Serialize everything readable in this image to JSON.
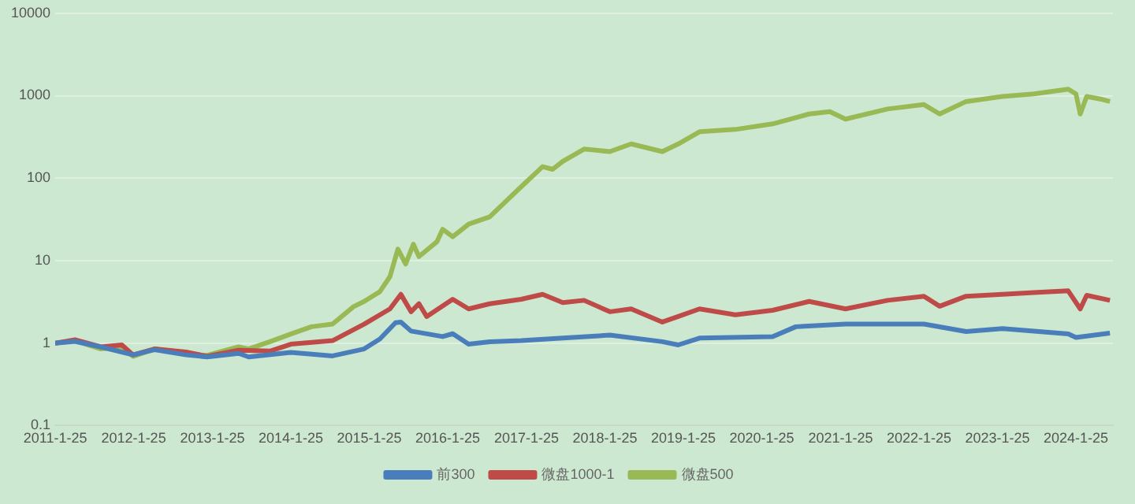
{
  "chart_data": {
    "type": "line",
    "log": "y",
    "grid": "y",
    "legend": "bottom",
    "xlim": [
      "2011-01-25",
      "2024-07-15"
    ],
    "xticks": [
      {
        "value": "2011-01-25",
        "label": "2011-1-25"
      },
      {
        "value": "2012-01-25",
        "label": "2012-1-25"
      },
      {
        "value": "2013-01-25",
        "label": "2013-1-25"
      },
      {
        "value": "2014-01-25",
        "label": "2014-1-25"
      },
      {
        "value": "2015-01-25",
        "label": "2015-1-25"
      },
      {
        "value": "2016-01-25",
        "label": "2016-1-25"
      },
      {
        "value": "2017-01-25",
        "label": "2017-1-25"
      },
      {
        "value": "2018-01-25",
        "label": "2018-1-25"
      },
      {
        "value": "2019-01-25",
        "label": "2019-1-25"
      },
      {
        "value": "2020-01-25",
        "label": "2020-1-25"
      },
      {
        "value": "2021-01-25",
        "label": "2021-1-25"
      },
      {
        "value": "2022-01-25",
        "label": "2022-1-25"
      },
      {
        "value": "2023-01-25",
        "label": "2023-1-25"
      },
      {
        "value": "2024-01-25",
        "label": "2024-1-25"
      }
    ],
    "ylim": [
      0.1,
      10000
    ],
    "yticks": [
      0.1,
      1,
      10,
      100,
      1000,
      10000
    ],
    "series": [
      {
        "name": "前300",
        "color": "#4a7ebb",
        "x": [
          "2011-01-25",
          "2011-04-27",
          "2011-08-25",
          "2012-01-22",
          "2012-05-01",
          "2012-09-24",
          "2013-01-01",
          "2013-05-27",
          "2013-07-13",
          "2014-01-25",
          "2014-08-07",
          "2015-01-01",
          "2015-03-15",
          "2015-05-27",
          "2015-06-21",
          "2015-08-07",
          "2016-01-01",
          "2016-02-17",
          "2016-05-01",
          "2016-08-07",
          "2017-01-01",
          "2017-07-13",
          "2018-02-17",
          "2018-10-19",
          "2019-01-01",
          "2019-04-10",
          "2020-03-15",
          "2020-07-01",
          "2021-02-17",
          "2022-02-17",
          "2022-09-01",
          "2023-02-17",
          "2023-12-20",
          "2024-01-25",
          "2024-07-01"
        ],
        "values": [
          1.0,
          1.05,
          0.9,
          0.72,
          0.83,
          0.72,
          0.68,
          0.75,
          0.68,
          0.77,
          0.7,
          0.85,
          1.12,
          1.77,
          1.8,
          1.4,
          1.2,
          1.3,
          0.97,
          1.04,
          1.07,
          1.15,
          1.25,
          1.04,
          0.95,
          1.15,
          1.2,
          1.58,
          1.7,
          1.7,
          1.38,
          1.5,
          1.29,
          1.17,
          1.32
        ]
      },
      {
        "name": "微盘1000-1",
        "color": "#be4b48",
        "x": [
          "2011-01-25",
          "2011-04-27",
          "2011-08-25",
          "2011-12-01",
          "2012-01-22",
          "2012-05-01",
          "2012-09-24",
          "2013-01-01",
          "2013-05-27",
          "2013-10-20",
          "2014-01-25",
          "2014-08-07",
          "2015-01-01",
          "2015-05-01",
          "2015-06-21",
          "2015-08-07",
          "2015-09-13",
          "2015-10-19",
          "2016-02-17",
          "2016-05-01",
          "2016-08-07",
          "2017-01-01",
          "2017-04-10",
          "2017-07-13",
          "2017-10-20",
          "2018-02-17",
          "2018-05-27",
          "2018-10-19",
          "2019-01-01",
          "2019-04-10",
          "2019-09-24",
          "2020-03-15",
          "2020-09-01",
          "2021-02-17",
          "2021-09-01",
          "2022-02-17",
          "2022-05-01",
          "2022-09-01",
          "2023-02-17",
          "2023-07-13",
          "2023-12-20",
          "2024-02-14",
          "2024-03-15",
          "2024-07-01"
        ],
        "values": [
          1.0,
          1.1,
          0.9,
          0.95,
          0.72,
          0.85,
          0.78,
          0.69,
          0.82,
          0.8,
          0.97,
          1.07,
          1.7,
          2.6,
          3.9,
          2.4,
          3.0,
          2.1,
          3.4,
          2.6,
          3.0,
          3.4,
          3.9,
          3.1,
          3.3,
          2.4,
          2.6,
          1.8,
          2.1,
          2.6,
          2.2,
          2.5,
          3.2,
          2.6,
          3.3,
          3.7,
          2.8,
          3.7,
          3.9,
          4.1,
          4.3,
          2.6,
          3.8,
          3.3
        ]
      },
      {
        "name": "微盘500",
        "color": "#98b954",
        "x": [
          "2011-01-25",
          "2011-04-27",
          "2011-08-25",
          "2011-12-01",
          "2012-01-22",
          "2012-05-01",
          "2012-09-24",
          "2013-01-01",
          "2013-05-27",
          "2013-07-13",
          "2013-10-20",
          "2014-01-25",
          "2014-05-01",
          "2014-08-07",
          "2014-11-13",
          "2015-01-01",
          "2015-03-15",
          "2015-05-01",
          "2015-06-07",
          "2015-07-13",
          "2015-08-18",
          "2015-09-13",
          "2015-12-06",
          "2016-01-01",
          "2016-02-17",
          "2016-05-01",
          "2016-08-07",
          "2017-01-01",
          "2017-04-10",
          "2017-05-27",
          "2017-07-13",
          "2017-10-20",
          "2018-02-17",
          "2018-05-27",
          "2018-10-19",
          "2019-01-01",
          "2019-04-10",
          "2019-09-24",
          "2020-03-15",
          "2020-09-01",
          "2020-12-06",
          "2021-02-17",
          "2021-09-01",
          "2022-02-17",
          "2022-05-01",
          "2022-09-01",
          "2023-02-17",
          "2023-07-13",
          "2023-12-20",
          "2024-01-25",
          "2024-02-14",
          "2024-03-15",
          "2024-05-27",
          "2024-07-01"
        ],
        "values": [
          1.0,
          1.07,
          0.85,
          0.9,
          0.69,
          0.85,
          0.74,
          0.71,
          0.9,
          0.85,
          1.04,
          1.29,
          1.58,
          1.7,
          2.77,
          3.2,
          4.2,
          6.4,
          13.8,
          9.1,
          15.8,
          11.2,
          17,
          24,
          19.5,
          27.7,
          34,
          79,
          138,
          128,
          160,
          225,
          210,
          260,
          210,
          260,
          365,
          390,
          455,
          600,
          640,
          520,
          690,
          780,
          600,
          850,
          980,
          1050,
          1200,
          1050,
          600,
          980,
          900,
          850
        ]
      }
    ]
  }
}
